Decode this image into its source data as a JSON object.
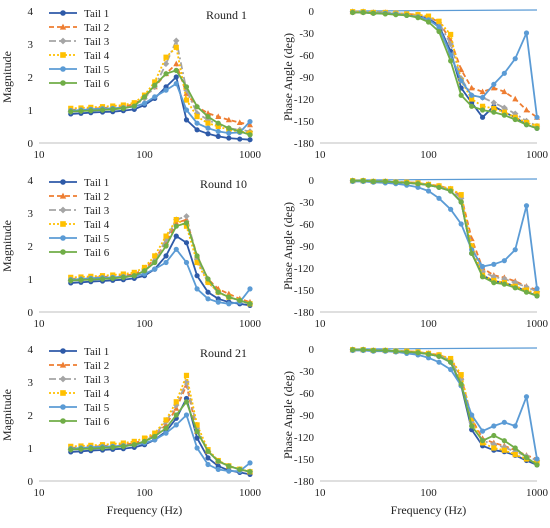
{
  "figure": {
    "x_axis_title": "Frequency  (Hz)",
    "mag_axis_title": "Magnitude",
    "phase_axis_title": "Phase Angle (deg)"
  },
  "legend_labels": [
    "Tail 1",
    "Tail 2",
    "Tail 3",
    "Tail 4",
    "Tail 5",
    "Tail 6"
  ],
  "series_styles": [
    {
      "color": "#2e5aa8",
      "dash": "",
      "marker": "circle"
    },
    {
      "color": "#ee7d31",
      "dash": "5,3",
      "marker": "triangle"
    },
    {
      "color": "#a5a5a5",
      "dash": "7,3,2,3",
      "marker": "diamond"
    },
    {
      "color": "#ffc000",
      "dash": "2,2",
      "marker": "square"
    },
    {
      "color": "#5b9bd5",
      "dash": "",
      "marker": "circle"
    },
    {
      "color": "#70ad47",
      "dash": "",
      "marker": "circle"
    }
  ],
  "chart_data": [
    {
      "type": "line",
      "panel": "magnitude",
      "label": "Round 1",
      "xlabel": "",
      "ylabel": "Magnitude",
      "x_scale": "log",
      "xlim": [
        10,
        1000
      ],
      "ylim": [
        0,
        4
      ],
      "x_ticks": [
        "10",
        "100",
        "1000"
      ],
      "y_ticks": [
        "0",
        "1",
        "2",
        "3",
        "4"
      ],
      "x": [
        20,
        25,
        31,
        40,
        50,
        63,
        80,
        100,
        125,
        160,
        200,
        250,
        315,
        400,
        500,
        630,
        800,
        1000
      ],
      "series": [
        {
          "name": "Tail 1",
          "values": [
            0.88,
            0.9,
            0.92,
            0.94,
            0.95,
            0.98,
            1.02,
            1.15,
            1.35,
            1.7,
            2.0,
            0.7,
            0.4,
            0.28,
            0.2,
            0.15,
            0.12,
            0.1
          ]
        },
        {
          "name": "Tail 2",
          "values": [
            1.0,
            1.02,
            1.04,
            1.06,
            1.08,
            1.1,
            1.18,
            1.4,
            1.7,
            2.1,
            2.4,
            1.5,
            1.1,
            0.9,
            0.8,
            0.7,
            0.62,
            0.55
          ]
        },
        {
          "name": "Tail 3",
          "values": [
            0.95,
            0.97,
            0.99,
            1.01,
            1.03,
            1.05,
            1.12,
            1.35,
            1.7,
            2.4,
            3.1,
            1.6,
            0.9,
            0.7,
            0.55,
            0.45,
            0.4,
            0.35
          ]
        },
        {
          "name": "Tail 4",
          "values": [
            1.05,
            1.06,
            1.08,
            1.1,
            1.12,
            1.15,
            1.22,
            1.45,
            1.85,
            2.6,
            2.9,
            1.3,
            0.8,
            0.6,
            0.5,
            0.4,
            0.35,
            0.3
          ]
        },
        {
          "name": "Tail 5",
          "values": [
            0.98,
            1.0,
            1.02,
            1.04,
            1.05,
            1.07,
            1.1,
            1.2,
            1.4,
            1.6,
            1.8,
            1.0,
            0.6,
            0.45,
            0.35,
            0.3,
            0.32,
            0.65
          ]
        },
        {
          "name": "Tail 6",
          "values": [
            0.95,
            0.97,
            0.98,
            1.0,
            1.02,
            1.05,
            1.12,
            1.4,
            1.75,
            2.1,
            2.2,
            1.7,
            1.1,
            0.8,
            0.6,
            0.45,
            0.35,
            0.25
          ]
        }
      ]
    },
    {
      "type": "line",
      "panel": "phase",
      "label": "",
      "xlabel": "",
      "ylabel": "Phase Angle (deg)",
      "x_scale": "log",
      "xlim": [
        10,
        1000
      ],
      "ylim": [
        -180,
        0
      ],
      "x_ticks": [
        "10",
        "100",
        "1000"
      ],
      "y_ticks": [
        "0",
        "-30",
        "-60",
        "-90",
        "-120",
        "-150",
        "-180"
      ],
      "x": [
        20,
        25,
        31,
        40,
        50,
        63,
        80,
        100,
        125,
        160,
        200,
        250,
        315,
        400,
        500,
        630,
        800,
        1000
      ],
      "series": [
        {
          "name": "Tail 1",
          "values": [
            -2,
            -2,
            -3,
            -3,
            -4,
            -5,
            -7,
            -10,
            -20,
            -55,
            -105,
            -125,
            -145,
            -130,
            -138,
            -145,
            -155,
            -160
          ]
        },
        {
          "name": "Tail 2",
          "values": [
            -1,
            -1,
            -2,
            -2,
            -3,
            -4,
            -5,
            -8,
            -15,
            -40,
            -80,
            -105,
            -110,
            -105,
            -110,
            -120,
            -135,
            -145
          ]
        },
        {
          "name": "Tail 3",
          "values": [
            -1,
            -1,
            -2,
            -3,
            -3,
            -4,
            -6,
            -9,
            -16,
            -45,
            -92,
            -115,
            -118,
            -125,
            -132,
            -140,
            -150,
            -157
          ]
        },
        {
          "name": "Tail 4",
          "values": [
            -1,
            -1,
            -2,
            -2,
            -3,
            -4,
            -5,
            -7,
            -14,
            -32,
            -95,
            -120,
            -130,
            -133,
            -138,
            -145,
            -152,
            -157
          ]
        },
        {
          "name": "Tail 5",
          "values": [
            -2,
            -2,
            -3,
            -3,
            -4,
            -6,
            -8,
            -12,
            -22,
            -60,
            -95,
            -115,
            -118,
            -100,
            -85,
            -65,
            -30,
            -145
          ]
        },
        {
          "name": "Tail 6",
          "values": [
            -2,
            -2,
            -3,
            -4,
            -5,
            -6,
            -9,
            -15,
            -28,
            -68,
            -115,
            -130,
            -135,
            -138,
            -142,
            -148,
            -155,
            -160
          ]
        }
      ]
    },
    {
      "type": "line",
      "panel": "magnitude",
      "label": "Round 10",
      "xlabel": "",
      "ylabel": "Magnitude",
      "x_scale": "log",
      "xlim": [
        10,
        1000
      ],
      "ylim": [
        0,
        4
      ],
      "x_ticks": [
        "10",
        "100",
        "1000"
      ],
      "y_ticks": [
        "0",
        "1",
        "2",
        "3",
        "4"
      ],
      "x": [
        20,
        25,
        31,
        40,
        50,
        63,
        80,
        100,
        125,
        160,
        200,
        250,
        315,
        400,
        500,
        630,
        800,
        1000
      ],
      "series": [
        {
          "name": "Tail 1",
          "values": [
            0.88,
            0.9,
            0.92,
            0.94,
            0.96,
            0.98,
            1.02,
            1.1,
            1.3,
            1.7,
            2.3,
            2.1,
            1.1,
            0.6,
            0.4,
            0.3,
            0.25,
            0.2
          ]
        },
        {
          "name": "Tail 2",
          "values": [
            1.0,
            1.02,
            1.04,
            1.06,
            1.08,
            1.1,
            1.15,
            1.3,
            1.6,
            2.1,
            2.7,
            2.8,
            1.7,
            1.0,
            0.7,
            0.55,
            0.4,
            0.3
          ]
        },
        {
          "name": "Tail 3",
          "values": [
            0.95,
            0.97,
            0.99,
            1.01,
            1.03,
            1.05,
            1.1,
            1.25,
            1.55,
            2.2,
            2.8,
            2.9,
            1.6,
            0.9,
            0.6,
            0.45,
            0.35,
            0.25
          ]
        },
        {
          "name": "Tail 4",
          "values": [
            1.05,
            1.06,
            1.08,
            1.1,
            1.12,
            1.15,
            1.2,
            1.35,
            1.7,
            2.3,
            2.8,
            2.6,
            1.5,
            0.9,
            0.6,
            0.45,
            0.35,
            0.25
          ]
        },
        {
          "name": "Tail 5",
          "values": [
            0.98,
            1.0,
            1.02,
            1.04,
            1.05,
            1.07,
            1.1,
            1.15,
            1.3,
            1.5,
            1.9,
            1.5,
            0.7,
            0.4,
            0.3,
            0.25,
            0.3,
            0.7
          ]
        },
        {
          "name": "Tail 6",
          "values": [
            0.95,
            0.97,
            0.98,
            1.0,
            1.02,
            1.05,
            1.1,
            1.25,
            1.5,
            2.0,
            2.6,
            2.7,
            1.7,
            1.0,
            0.6,
            0.45,
            0.35,
            0.25
          ]
        }
      ]
    },
    {
      "type": "line",
      "panel": "phase",
      "label": "",
      "xlabel": "",
      "ylabel": "Phase Angle (deg)",
      "x_scale": "log",
      "xlim": [
        10,
        1000
      ],
      "ylim": [
        -180,
        0
      ],
      "x_ticks": [
        "10",
        "100",
        "1000"
      ],
      "y_ticks": [
        "0",
        "-30",
        "-60",
        "-90",
        "-120",
        "-150",
        "-180"
      ],
      "x": [
        20,
        25,
        31,
        40,
        50,
        63,
        80,
        100,
        125,
        160,
        200,
        250,
        315,
        400,
        500,
        630,
        800,
        1000
      ],
      "series": [
        {
          "name": "Tail 1",
          "values": [
            -1,
            -1,
            -2,
            -2,
            -3,
            -4,
            -5,
            -7,
            -10,
            -15,
            -30,
            -100,
            -130,
            -138,
            -140,
            -145,
            -152,
            -158
          ]
        },
        {
          "name": "Tail 2",
          "values": [
            -1,
            -1,
            -2,
            -2,
            -3,
            -3,
            -4,
            -6,
            -8,
            -12,
            -22,
            -80,
            -120,
            -130,
            -133,
            -138,
            -145,
            -150
          ]
        },
        {
          "name": "Tail 3",
          "values": [
            -1,
            -1,
            -2,
            -2,
            -3,
            -3,
            -4,
            -6,
            -9,
            -13,
            -25,
            -90,
            -125,
            -132,
            -135,
            -140,
            -146,
            -152
          ]
        },
        {
          "name": "Tail 4",
          "values": [
            -1,
            -1,
            -2,
            -2,
            -3,
            -3,
            -4,
            -6,
            -8,
            -12,
            -20,
            -90,
            -130,
            -137,
            -140,
            -145,
            -150,
            -155
          ]
        },
        {
          "name": "Tail 5",
          "values": [
            -2,
            -2,
            -3,
            -4,
            -5,
            -7,
            -10,
            -15,
            -25,
            -40,
            -60,
            -95,
            -118,
            -115,
            -110,
            -95,
            -35,
            -148
          ]
        },
        {
          "name": "Tail 6",
          "values": [
            -1,
            -1,
            -2,
            -2,
            -3,
            -4,
            -5,
            -7,
            -10,
            -15,
            -30,
            -100,
            -132,
            -140,
            -142,
            -147,
            -153,
            -158
          ]
        }
      ]
    },
    {
      "type": "line",
      "panel": "magnitude",
      "label": "Round 21",
      "xlabel": "Frequency  (Hz)",
      "ylabel": "Magnitude",
      "x_scale": "log",
      "xlim": [
        10,
        1000
      ],
      "ylim": [
        0,
        4
      ],
      "x_ticks": [
        "10",
        "100",
        "1000"
      ],
      "y_ticks": [
        "0",
        "1",
        "2",
        "3",
        "4"
      ],
      "x": [
        20,
        25,
        31,
        40,
        50,
        63,
        80,
        100,
        125,
        160,
        200,
        250,
        315,
        400,
        500,
        630,
        800,
        1000
      ],
      "series": [
        {
          "name": "Tail 1",
          "values": [
            0.88,
            0.9,
            0.92,
            0.94,
            0.96,
            0.98,
            1.02,
            1.1,
            1.25,
            1.5,
            1.9,
            2.5,
            1.3,
            0.7,
            0.45,
            0.32,
            0.26,
            0.2
          ]
        },
        {
          "name": "Tail 2",
          "values": [
            1.0,
            1.02,
            1.04,
            1.06,
            1.08,
            1.1,
            1.15,
            1.25,
            1.4,
            1.7,
            2.2,
            2.9,
            1.5,
            0.9,
            0.6,
            0.45,
            0.35,
            0.28
          ]
        },
        {
          "name": "Tail 3",
          "values": [
            0.95,
            0.97,
            0.99,
            1.01,
            1.03,
            1.05,
            1.1,
            1.2,
            1.4,
            1.8,
            2.3,
            3.0,
            1.6,
            0.9,
            0.6,
            0.45,
            0.35,
            0.28
          ]
        },
        {
          "name": "Tail 4",
          "values": [
            1.05,
            1.06,
            1.08,
            1.1,
            1.12,
            1.15,
            1.2,
            1.3,
            1.45,
            1.85,
            2.4,
            3.2,
            1.7,
            0.95,
            0.62,
            0.46,
            0.36,
            0.28
          ]
        },
        {
          "name": "Tail 5",
          "values": [
            0.98,
            1.0,
            1.02,
            1.04,
            1.05,
            1.07,
            1.1,
            1.15,
            1.25,
            1.45,
            1.7,
            2.0,
            1.0,
            0.5,
            0.35,
            0.3,
            0.3,
            0.55
          ]
        },
        {
          "name": "Tail 6",
          "values": [
            0.95,
            0.97,
            0.98,
            1.0,
            1.02,
            1.05,
            1.1,
            1.2,
            1.35,
            1.6,
            2.0,
            2.4,
            1.5,
            0.9,
            0.6,
            0.45,
            0.35,
            0.28
          ]
        }
      ]
    },
    {
      "type": "line",
      "panel": "phase",
      "label": "",
      "xlabel": "Frequency  (Hz)",
      "ylabel": "Phase Angle (deg)",
      "x_scale": "log",
      "xlim": [
        10,
        1000
      ],
      "ylim": [
        -180,
        0
      ],
      "x_ticks": [
        "10",
        "100",
        "1000"
      ],
      "y_ticks": [
        "0",
        "-30",
        "-60",
        "-90",
        "-120",
        "-150",
        "-180"
      ],
      "x": [
        20,
        25,
        31,
        40,
        50,
        63,
        80,
        100,
        125,
        160,
        200,
        250,
        315,
        400,
        500,
        630,
        800,
        1000
      ],
      "series": [
        {
          "name": "Tail 1",
          "values": [
            -1,
            -1,
            -2,
            -2,
            -3,
            -4,
            -5,
            -7,
            -10,
            -18,
            -50,
            -110,
            -132,
            -138,
            -140,
            -145,
            -152,
            -158
          ]
        },
        {
          "name": "Tail 2",
          "values": [
            -1,
            -1,
            -2,
            -2,
            -3,
            -3,
            -4,
            -6,
            -8,
            -14,
            -38,
            -95,
            -122,
            -128,
            -132,
            -138,
            -145,
            -150
          ]
        },
        {
          "name": "Tail 3",
          "values": [
            -1,
            -1,
            -2,
            -2,
            -3,
            -3,
            -4,
            -6,
            -9,
            -15,
            -42,
            -100,
            -125,
            -130,
            -134,
            -140,
            -146,
            -152
          ]
        },
        {
          "name": "Tail 4",
          "values": [
            -1,
            -1,
            -2,
            -2,
            -3,
            -3,
            -4,
            -6,
            -8,
            -13,
            -35,
            -95,
            -128,
            -135,
            -138,
            -144,
            -150,
            -155
          ]
        },
        {
          "name": "Tail 5",
          "values": [
            -2,
            -2,
            -3,
            -3,
            -4,
            -6,
            -8,
            -12,
            -18,
            -28,
            -50,
            -90,
            -112,
            -105,
            -100,
            -105,
            -65,
            -150
          ]
        },
        {
          "name": "Tail 6",
          "values": [
            -1,
            -1,
            -2,
            -2,
            -3,
            -4,
            -5,
            -7,
            -10,
            -18,
            -48,
            -105,
            -125,
            -118,
            -125,
            -135,
            -148,
            -158
          ]
        }
      ]
    }
  ]
}
